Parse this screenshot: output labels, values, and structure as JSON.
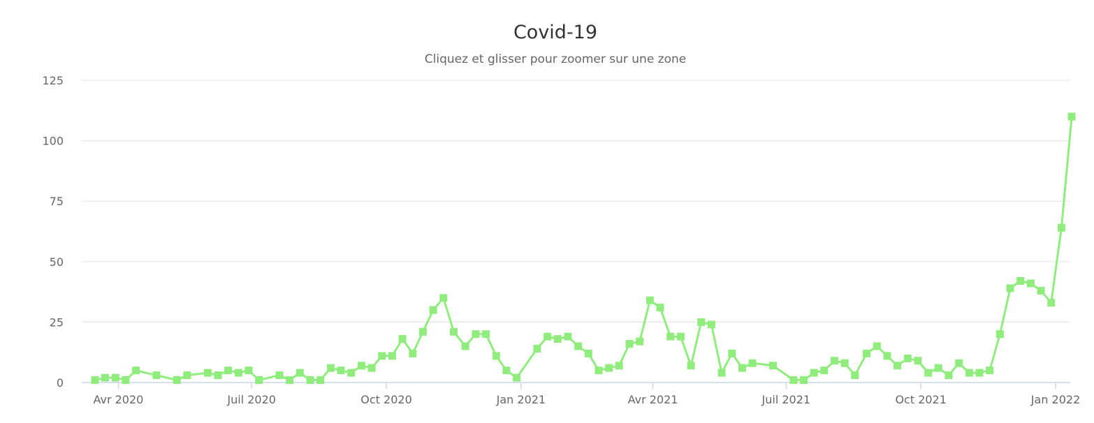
{
  "chart_data": {
    "type": "line",
    "title": "Covid-19",
    "subtitle": "Cliquez et glisser pour zoomer sur une zone",
    "ylim": [
      0,
      125
    ],
    "y_ticks": [
      "0",
      "25",
      "50",
      "75",
      "100",
      "125"
    ],
    "x_range": [
      "2020-03-07",
      "2022-01-11"
    ],
    "x_ticks": [
      {
        "date": "2020-04-01",
        "label": "Avr 2020"
      },
      {
        "date": "2020-07-01",
        "label": "Juil 2020"
      },
      {
        "date": "2020-10-01",
        "label": "Oct 2020"
      },
      {
        "date": "2021-01-01",
        "label": "Jan 2021"
      },
      {
        "date": "2021-04-01",
        "label": "Avr 2021"
      },
      {
        "date": "2021-07-01",
        "label": "Juil 2021"
      },
      {
        "date": "2021-10-01",
        "label": "Oct 2021"
      },
      {
        "date": "2022-01-01",
        "label": "Jan 2022"
      }
    ],
    "grid": true,
    "series": [
      {
        "color": "#90ed7d",
        "marker": "square",
        "points": [
          [
            "2020-03-16",
            1
          ],
          [
            "2020-03-23",
            2
          ],
          [
            "2020-03-30",
            2
          ],
          [
            "2020-04-06",
            1
          ],
          [
            "2020-04-13",
            5
          ],
          [
            "2020-04-27",
            3
          ],
          [
            "2020-05-11",
            1
          ],
          [
            "2020-05-18",
            3
          ],
          [
            "2020-06-01",
            4
          ],
          [
            "2020-06-08",
            3
          ],
          [
            "2020-06-15",
            5
          ],
          [
            "2020-06-22",
            4
          ],
          [
            "2020-06-29",
            5
          ],
          [
            "2020-07-06",
            1
          ],
          [
            "2020-07-20",
            3
          ],
          [
            "2020-07-27",
            1
          ],
          [
            "2020-08-03",
            4
          ],
          [
            "2020-08-10",
            1
          ],
          [
            "2020-08-17",
            1
          ],
          [
            "2020-08-24",
            6
          ],
          [
            "2020-08-31",
            5
          ],
          [
            "2020-09-07",
            4
          ],
          [
            "2020-09-14",
            7
          ],
          [
            "2020-09-21",
            6
          ],
          [
            "2020-09-28",
            11
          ],
          [
            "2020-10-05",
            11
          ],
          [
            "2020-10-12",
            18
          ],
          [
            "2020-10-19",
            12
          ],
          [
            "2020-10-26",
            21
          ],
          [
            "2020-11-02",
            30
          ],
          [
            "2020-11-09",
            35
          ],
          [
            "2020-11-16",
            21
          ],
          [
            "2020-11-24",
            15
          ],
          [
            "2020-12-01",
            20
          ],
          [
            "2020-12-08",
            20
          ],
          [
            "2020-12-15",
            11
          ],
          [
            "2020-12-22",
            5
          ],
          [
            "2020-12-29",
            2
          ],
          [
            "2021-01-12",
            14
          ],
          [
            "2021-01-19",
            19
          ],
          [
            "2021-01-26",
            18
          ],
          [
            "2021-02-02",
            19
          ],
          [
            "2021-02-09",
            15
          ],
          [
            "2021-02-16",
            12
          ],
          [
            "2021-02-23",
            5
          ],
          [
            "2021-03-02",
            6
          ],
          [
            "2021-03-09",
            7
          ],
          [
            "2021-03-16",
            16
          ],
          [
            "2021-03-23",
            17
          ],
          [
            "2021-03-30",
            34
          ],
          [
            "2021-04-06",
            31
          ],
          [
            "2021-04-13",
            19
          ],
          [
            "2021-04-20",
            19
          ],
          [
            "2021-04-27",
            7
          ],
          [
            "2021-05-04",
            25
          ],
          [
            "2021-05-11",
            24
          ],
          [
            "2021-05-18",
            4
          ],
          [
            "2021-05-25",
            12
          ],
          [
            "2021-06-01",
            6
          ],
          [
            "2021-06-08",
            8
          ],
          [
            "2021-06-22",
            7
          ],
          [
            "2021-07-06",
            1
          ],
          [
            "2021-07-13",
            1
          ],
          [
            "2021-07-20",
            4
          ],
          [
            "2021-07-27",
            5
          ],
          [
            "2021-08-03",
            9
          ],
          [
            "2021-08-10",
            8
          ],
          [
            "2021-08-17",
            3
          ],
          [
            "2021-08-25",
            12
          ],
          [
            "2021-09-01",
            15
          ],
          [
            "2021-09-08",
            11
          ],
          [
            "2021-09-15",
            7
          ],
          [
            "2021-09-22",
            10
          ],
          [
            "2021-09-29",
            9
          ],
          [
            "2021-10-06",
            4
          ],
          [
            "2021-10-13",
            6
          ],
          [
            "2021-10-20",
            3
          ],
          [
            "2021-10-27",
            8
          ],
          [
            "2021-11-03",
            4
          ],
          [
            "2021-11-10",
            4
          ],
          [
            "2021-11-17",
            5
          ],
          [
            "2021-11-24",
            20
          ],
          [
            "2021-12-01",
            39
          ],
          [
            "2021-12-08",
            42
          ],
          [
            "2021-12-15",
            41
          ],
          [
            "2021-12-22",
            38
          ],
          [
            "2021-12-29",
            33
          ],
          [
            "2022-01-05",
            64
          ],
          [
            "2022-01-12",
            110
          ]
        ]
      }
    ]
  }
}
